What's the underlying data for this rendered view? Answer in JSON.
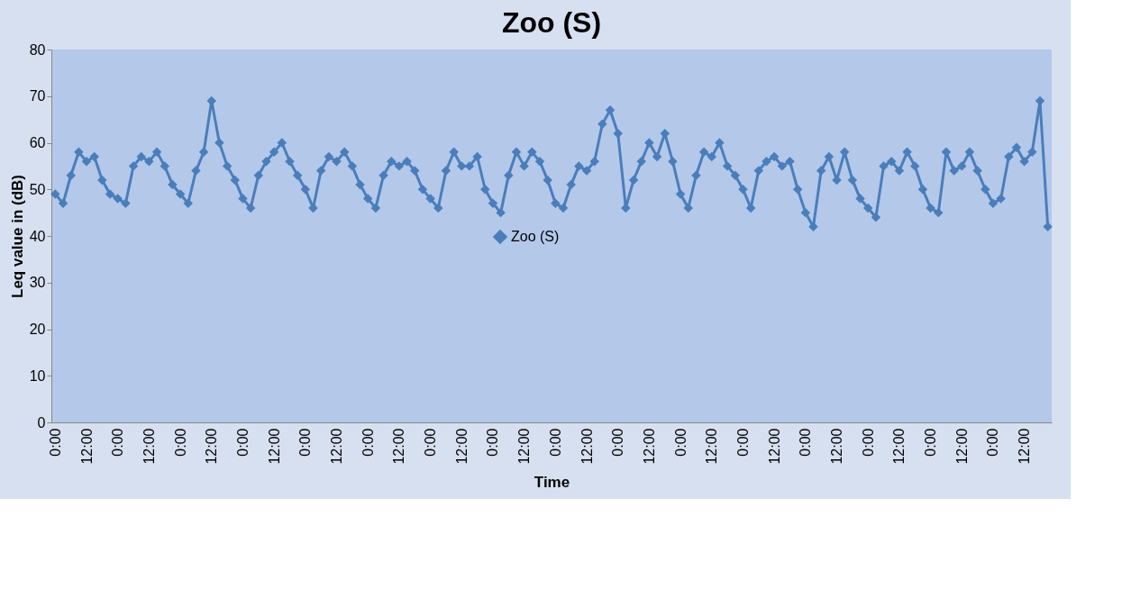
{
  "chart_data": {
    "type": "line",
    "title": "Zoo (S)",
    "xlabel": "Time",
    "ylabel": "Leq value in (dB)",
    "categories": [
      "0:00",
      null,
      null,
      null,
      "12:00",
      null,
      null,
      null,
      "0:00",
      null,
      null,
      null,
      "12:00",
      null,
      null,
      null,
      "0:00",
      null,
      null,
      null,
      "12:00",
      null,
      null,
      null,
      "0:00",
      null,
      null,
      null,
      "12:00",
      null,
      null,
      null,
      "0:00",
      null,
      null,
      null,
      "12:00",
      null,
      null,
      null,
      "0:00",
      null,
      null,
      null,
      "12:00",
      null,
      null,
      null,
      "0:00",
      null,
      null,
      null,
      "12:00",
      null,
      null,
      null,
      "0:00",
      null,
      null,
      null,
      "12:00",
      null,
      null,
      null,
      "0:00",
      null,
      null,
      null,
      "12:00",
      null,
      null,
      null,
      "0:00",
      null,
      null,
      null,
      "12:00",
      null,
      null,
      null,
      "0:00",
      null,
      null,
      null,
      "12:00",
      null,
      null,
      null,
      "0:00",
      null,
      null,
      null,
      "12:00",
      null,
      null,
      null,
      "0:00",
      null,
      null,
      null,
      "12:00",
      null,
      null,
      null,
      "0:00",
      null,
      null,
      null,
      "12:00",
      null,
      null,
      null,
      "0:00",
      null,
      null,
      null,
      "12:00",
      null,
      null,
      null,
      "0:00",
      null,
      null,
      null,
      "12:00",
      null,
      null,
      null
    ],
    "series": [
      {
        "name": "Zoo (S)",
        "color": "#4a7ebb",
        "values": [
          49,
          47,
          53,
          58,
          56,
          57,
          52,
          49,
          48,
          47,
          55,
          57,
          56,
          58,
          55,
          51,
          49,
          47,
          54,
          58,
          69,
          60,
          55,
          52,
          48,
          46,
          53,
          56,
          58,
          60,
          56,
          53,
          50,
          46,
          54,
          57,
          56,
          58,
          55,
          51,
          48,
          46,
          53,
          56,
          55,
          56,
          54,
          50,
          48,
          46,
          54,
          58,
          55,
          55,
          57,
          50,
          47,
          45,
          53,
          58,
          55,
          58,
          56,
          52,
          47,
          46,
          51,
          55,
          54,
          56,
          64,
          67,
          62,
          46,
          52,
          56,
          60,
          57,
          62,
          56,
          49,
          46,
          53,
          58,
          57,
          60,
          55,
          53,
          50,
          46,
          54,
          56,
          57,
          55,
          56,
          50,
          45,
          42,
          54,
          57,
          52,
          58,
          52,
          48,
          46,
          44,
          55,
          56,
          54,
          58,
          55,
          50,
          46,
          45,
          58,
          54,
          55,
          58,
          54,
          50,
          47,
          48,
          57,
          59,
          56,
          58,
          69,
          42
        ]
      }
    ],
    "ylim": [
      0,
      80
    ],
    "yticks": [
      0,
      10,
      20,
      30,
      40,
      50,
      60,
      70,
      80
    ],
    "grid": false,
    "legend": "center",
    "marker": "diamond"
  }
}
